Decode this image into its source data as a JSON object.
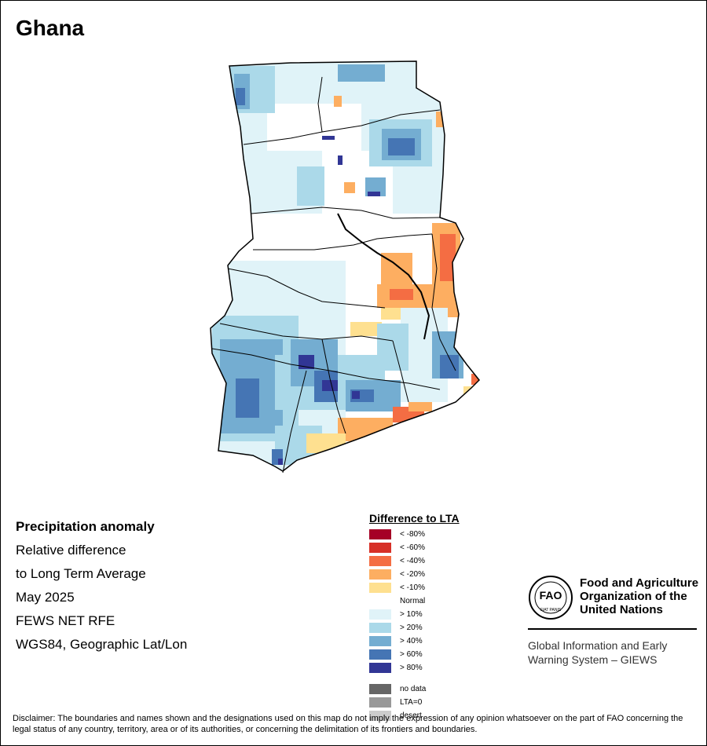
{
  "map_title": "Ghana",
  "info": {
    "heading": "Precipitation anomaly",
    "line1": "Relative difference",
    "line2": "to Long Term Average",
    "period": "May 2025",
    "source": "FEWS NET RFE",
    "projection": "WGS84, Geographic Lat/Lon"
  },
  "legend": {
    "title": "Difference to LTA",
    "classes": [
      {
        "label": "< -80%",
        "color": "#a50026"
      },
      {
        "label": "< -60%",
        "color": "#d73027"
      },
      {
        "label": "< -40%",
        "color": "#f46d43"
      },
      {
        "label": "< -20%",
        "color": "#fdae61"
      },
      {
        "label": "< -10%",
        "color": "#fee090"
      },
      {
        "label": "Normal",
        "color": "#ffffff"
      },
      {
        "label": "> 10%",
        "color": "#e0f3f8"
      },
      {
        "label": "> 20%",
        "color": "#abd9e9"
      },
      {
        "label": "> 40%",
        "color": "#74add1"
      },
      {
        "label": "> 60%",
        "color": "#4575b4"
      },
      {
        "label": "> 80%",
        "color": "#313695"
      }
    ],
    "extra": [
      {
        "label": "no data",
        "color": "#666666"
      },
      {
        "label": "LTA=0",
        "color": "#999999"
      },
      {
        "label": "desert",
        "color": "#cccccc"
      }
    ]
  },
  "logo": {
    "org_line1": "Food and Agriculture",
    "org_line2": "Organization of the",
    "org_line3": "United Nations",
    "fao_letters": "FAO",
    "motto": "FIAT PANIS",
    "system_line1": "Global Information and Early",
    "system_line2": "Warning System – GIEWS"
  },
  "disclaimer": "Disclaimer: The boundaries and names shown and the designations used on this map do not imply the expression of any opinion whatsoever on the part of FAO concerning the legal status of any country, territory, area or of its authorities, or concerning the delimitation of its frontiers and boundaries."
}
